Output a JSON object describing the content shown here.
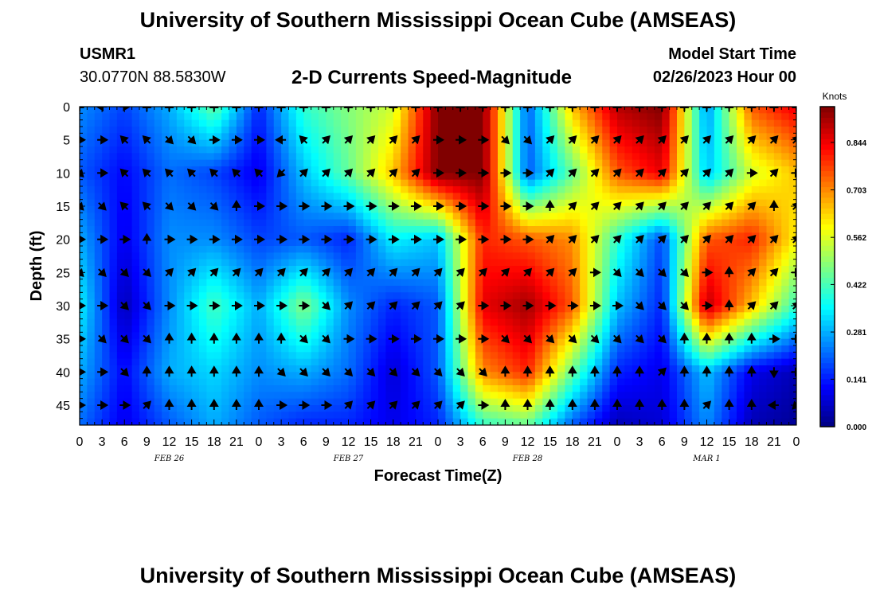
{
  "header": {
    "title": "University of Southern Mississippi Ocean Cube (AMSEAS)",
    "station": "USMR1",
    "coordinates": "30.0770N  88.5830W",
    "model_start_label": "Model Start Time",
    "model_start_value": "02/26/2023 Hour 00"
  },
  "footer": {
    "title": "University of Southern Mississippi Ocean Cube (AMSEAS)"
  },
  "chart_data": {
    "type": "heatmap",
    "title": "2-D Currents Speed-Magnitude",
    "xlabel": "Forecast Time(Z)",
    "ylabel": "Depth (ft)",
    "x_tick_labels": [
      "0",
      "3",
      "6",
      "9",
      "12",
      "15",
      "18",
      "21",
      "0",
      "3",
      "6",
      "9",
      "12",
      "15",
      "18",
      "21",
      "0",
      "3",
      "6",
      "9",
      "12",
      "15",
      "18",
      "21",
      "0",
      "3",
      "6",
      "9",
      "12",
      "15",
      "18",
      "21",
      "0"
    ],
    "x_range_hours": [
      0,
      96
    ],
    "day_labels": [
      {
        "label": "FEB 26",
        "hour": 12
      },
      {
        "label": "FEB 27",
        "hour": 36
      },
      {
        "label": "FEB 28",
        "hour": 60
      },
      {
        "label": "MAR 1",
        "hour": 84
      }
    ],
    "y_ticks": [
      0,
      5,
      10,
      15,
      20,
      25,
      30,
      35,
      40,
      45
    ],
    "y_range": [
      0,
      48
    ],
    "colorbar": {
      "title": "Knots",
      "tick_labels": [
        "0.000",
        "0.141",
        "0.281",
        "0.422",
        "0.562",
        "0.703",
        "0.844"
      ],
      "tick_values": [
        0.0,
        0.141,
        0.281,
        0.422,
        0.562,
        0.703,
        0.844
      ],
      "range": [
        0,
        0.95
      ]
    },
    "speed_hours": [
      0,
      6,
      12,
      18,
      24,
      30,
      36,
      42,
      48,
      54,
      60,
      66,
      72,
      78,
      84,
      90,
      96
    ],
    "speed_depths": [
      0,
      10,
      20,
      30,
      40,
      48
    ],
    "speed": [
      [
        0.25,
        0.18,
        0.28,
        0.45,
        0.15,
        0.4,
        0.48,
        0.55,
        0.95,
        0.95,
        0.2,
        0.65,
        0.9,
        0.95,
        0.25,
        0.75,
        0.85
      ],
      [
        0.2,
        0.12,
        0.22,
        0.18,
        0.1,
        0.3,
        0.45,
        0.65,
        0.95,
        0.95,
        0.2,
        0.45,
        0.75,
        0.85,
        0.3,
        0.55,
        0.65
      ],
      [
        0.28,
        0.1,
        0.25,
        0.25,
        0.18,
        0.2,
        0.15,
        0.35,
        0.3,
        0.8,
        0.75,
        0.7,
        0.4,
        0.18,
        0.75,
        0.8,
        0.6
      ],
      [
        0.35,
        0.05,
        0.25,
        0.42,
        0.28,
        0.48,
        0.25,
        0.15,
        0.2,
        0.85,
        0.92,
        0.75,
        0.3,
        0.15,
        0.9,
        0.65,
        0.4
      ],
      [
        0.28,
        0.12,
        0.28,
        0.32,
        0.25,
        0.28,
        0.22,
        0.08,
        0.2,
        0.7,
        0.8,
        0.45,
        0.15,
        0.1,
        0.3,
        0.1,
        0.05
      ],
      [
        0.22,
        0.1,
        0.2,
        0.28,
        0.2,
        0.15,
        0.15,
        0.1,
        0.15,
        0.4,
        0.45,
        0.2,
        0.05,
        0.08,
        0.25,
        0.05,
        0.02
      ]
    ],
    "vector_depths": [
      0,
      5,
      10,
      15,
      20,
      25,
      30,
      35,
      40,
      45
    ],
    "vector_hours": [
      0,
      3,
      6,
      9,
      12,
      15,
      18,
      21,
      24,
      27,
      30,
      33,
      36,
      39,
      42,
      45,
      48,
      51,
      54,
      57,
      60,
      63,
      66,
      69,
      72,
      75,
      78,
      81,
      84,
      87,
      90,
      93,
      96
    ],
    "vector_directions_deg": [
      [
        0,
        270,
        90,
        0,
        0,
        0,
        0,
        0,
        0,
        0,
        0,
        0,
        0,
        0,
        0,
        0,
        0,
        0,
        0,
        0,
        0,
        0,
        0,
        0,
        0,
        0,
        0,
        0,
        0,
        0,
        0,
        0,
        0
      ],
      [
        90,
        90,
        315,
        315,
        135,
        135,
        90,
        90,
        90,
        270,
        315,
        45,
        45,
        45,
        45,
        45,
        90,
        90,
        90,
        135,
        135,
        45,
        45,
        45,
        45,
        45,
        45,
        45,
        45,
        45,
        45,
        45,
        45
      ],
      [
        135,
        90,
        315,
        315,
        315,
        315,
        315,
        315,
        315,
        225,
        45,
        45,
        45,
        45,
        45,
        45,
        90,
        90,
        90,
        90,
        90,
        45,
        45,
        45,
        45,
        45,
        45,
        45,
        45,
        45,
        90,
        45,
        90
      ],
      [
        135,
        135,
        315,
        315,
        135,
        135,
        135,
        0,
        90,
        90,
        90,
        90,
        90,
        90,
        90,
        90,
        90,
        90,
        90,
        90,
        90,
        0,
        45,
        45,
        45,
        45,
        45,
        45,
        45,
        45,
        45,
        0,
        45
      ],
      [
        90,
        90,
        90,
        0,
        90,
        90,
        90,
        90,
        90,
        90,
        90,
        90,
        90,
        90,
        90,
        90,
        90,
        90,
        90,
        90,
        90,
        45,
        45,
        45,
        45,
        45,
        45,
        45,
        45,
        45,
        45,
        45,
        45
      ],
      [
        135,
        135,
        135,
        135,
        45,
        45,
        45,
        45,
        45,
        45,
        45,
        45,
        45,
        45,
        45,
        45,
        45,
        45,
        45,
        45,
        45,
        45,
        45,
        90,
        135,
        135,
        135,
        135,
        90,
        0,
        45,
        45,
        90
      ],
      [
        90,
        90,
        135,
        135,
        90,
        90,
        90,
        90,
        90,
        90,
        90,
        135,
        45,
        45,
        45,
        45,
        45,
        45,
        90,
        90,
        90,
        90,
        90,
        90,
        90,
        135,
        135,
        135,
        90,
        0,
        45,
        45,
        45
      ],
      [
        90,
        135,
        135,
        135,
        0,
        0,
        0,
        0,
        0,
        0,
        135,
        135,
        90,
        90,
        90,
        90,
        90,
        90,
        90,
        135,
        135,
        135,
        135,
        135,
        135,
        135,
        135,
        0,
        0,
        0,
        0,
        90,
        90
      ],
      [
        90,
        90,
        135,
        0,
        0,
        0,
        0,
        0,
        0,
        135,
        135,
        135,
        135,
        135,
        135,
        135,
        135,
        135,
        135,
        0,
        0,
        0,
        0,
        0,
        0,
        0,
        45,
        0,
        0,
        0,
        0,
        180,
        90
      ],
      [
        90,
        90,
        90,
        45,
        0,
        0,
        0,
        0,
        0,
        90,
        90,
        90,
        45,
        45,
        45,
        45,
        45,
        45,
        90,
        0,
        0,
        0,
        0,
        0,
        0,
        0,
        0,
        0,
        45,
        0,
        0,
        270,
        225
      ]
    ]
  }
}
